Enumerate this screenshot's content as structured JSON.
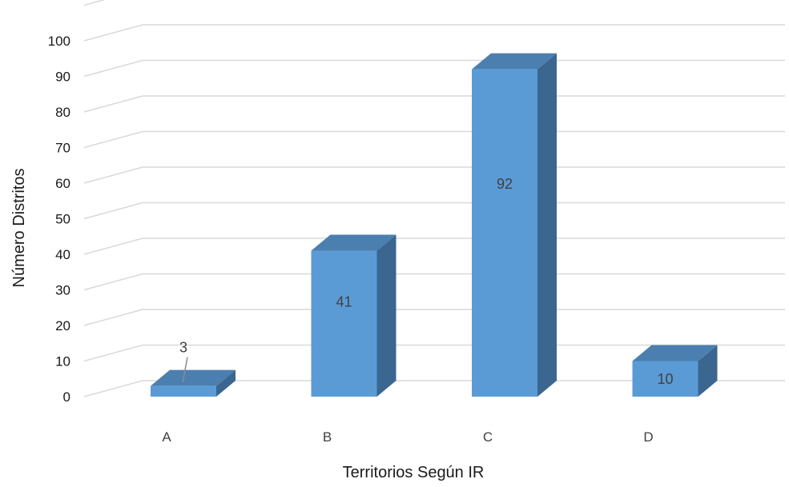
{
  "chart_data": {
    "type": "bar",
    "title": "",
    "xlabel": "Territorios Según IR",
    "ylabel": "Número Distritos",
    "categories": [
      "A",
      "B",
      "C",
      "D"
    ],
    "values": [
      3,
      41,
      92,
      10
    ],
    "value_labels": [
      "3",
      "41",
      "92",
      "10"
    ],
    "ylim": [
      0,
      100
    ],
    "yticks": [
      "0",
      "10",
      "20",
      "30",
      "40",
      "50",
      "60",
      "70",
      "80",
      "90",
      "100"
    ],
    "grid": true,
    "three_d": true,
    "colors": {
      "bar_front": "#5b9bd5",
      "bar_top": "#4a7fb0",
      "bar_side": "#3a6690",
      "gridline": "#d9d9d9",
      "leader": "#8c8c8c"
    }
  }
}
